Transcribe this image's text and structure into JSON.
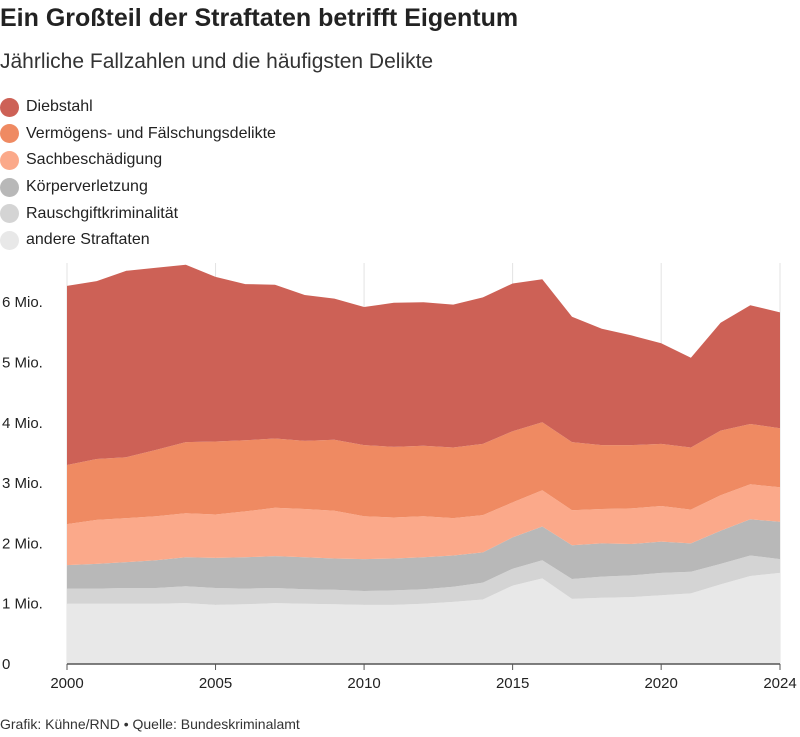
{
  "header": {
    "title": "Ein Großteil der Straftaten betrifft Eigentum",
    "subtitle": "Jährliche Fallzahlen und die häufigsten Delikte"
  },
  "footer": {
    "source": "Grafik: Kühne/RND • Quelle: Bundeskriminalamt"
  },
  "chart_data": {
    "type": "area",
    "stacked": true,
    "x": [
      2000,
      2001,
      2002,
      2003,
      2004,
      2005,
      2006,
      2007,
      2008,
      2009,
      2010,
      2011,
      2012,
      2013,
      2014,
      2015,
      2016,
      2017,
      2018,
      2019,
      2020,
      2021,
      2022,
      2023,
      2024
    ],
    "x_ticks": [
      2000,
      2005,
      2010,
      2015,
      2020,
      2024
    ],
    "y_ticks": [
      0,
      1,
      2,
      3,
      4,
      5,
      6
    ],
    "y_tick_labels": [
      "0",
      "1 Mio.",
      "2 Mio.",
      "3 Mio.",
      "4 Mio.",
      "5 Mio.",
      "6 Mio."
    ],
    "ylim": [
      0,
      6.65
    ],
    "xlim": [
      2000,
      2024
    ],
    "grid": "vertical",
    "legend_position": "top-left",
    "series": [
      {
        "name": "andere Straftaten",
        "color": "#e8e8e8",
        "values": [
          1.0,
          1.0,
          1.0,
          1.0,
          1.01,
          0.98,
          0.99,
          1.01,
          1.0,
          0.99,
          0.98,
          0.98,
          1.0,
          1.03,
          1.07,
          1.3,
          1.42,
          1.08,
          1.1,
          1.11,
          1.14,
          1.17,
          1.32,
          1.46,
          1.51
        ]
      },
      {
        "name": "Rauschgiftkriminalität",
        "color": "#d4d4d4",
        "values": [
          0.25,
          0.25,
          0.26,
          0.26,
          0.28,
          0.28,
          0.26,
          0.25,
          0.24,
          0.24,
          0.23,
          0.24,
          0.24,
          0.25,
          0.28,
          0.28,
          0.3,
          0.33,
          0.35,
          0.36,
          0.37,
          0.36,
          0.34,
          0.34,
          0.23
        ]
      },
      {
        "name": "Körperverletzung",
        "color": "#b8b8b8",
        "values": [
          0.39,
          0.41,
          0.43,
          0.46,
          0.48,
          0.5,
          0.52,
          0.53,
          0.53,
          0.52,
          0.53,
          0.53,
          0.53,
          0.52,
          0.5,
          0.52,
          0.56,
          0.56,
          0.55,
          0.52,
          0.52,
          0.47,
          0.55,
          0.6,
          0.62
        ]
      },
      {
        "name": "Sachbeschädigung",
        "color": "#fba98a",
        "values": [
          0.68,
          0.73,
          0.73,
          0.73,
          0.73,
          0.72,
          0.76,
          0.8,
          0.8,
          0.79,
          0.71,
          0.68,
          0.68,
          0.62,
          0.62,
          0.58,
          0.6,
          0.58,
          0.57,
          0.59,
          0.59,
          0.56,
          0.59,
          0.58,
          0.57
        ]
      },
      {
        "name": "Vermögens- und Fälschungsdelikte",
        "color": "#ef8a62",
        "values": [
          0.98,
          1.01,
          1.01,
          1.1,
          1.18,
          1.21,
          1.18,
          1.15,
          1.13,
          1.18,
          1.18,
          1.17,
          1.17,
          1.17,
          1.18,
          1.18,
          1.13,
          1.13,
          1.06,
          1.05,
          1.03,
          1.03,
          1.07,
          1.0,
          0.98
        ]
      },
      {
        "name": "Diebstahl",
        "color": "#cd6156",
        "values": [
          2.97,
          2.95,
          3.09,
          3.02,
          2.94,
          2.73,
          2.59,
          2.55,
          2.42,
          2.34,
          2.29,
          2.39,
          2.38,
          2.37,
          2.43,
          2.45,
          2.37,
          2.08,
          1.93,
          1.82,
          1.67,
          1.49,
          1.79,
          1.97,
          1.92
        ]
      }
    ]
  }
}
